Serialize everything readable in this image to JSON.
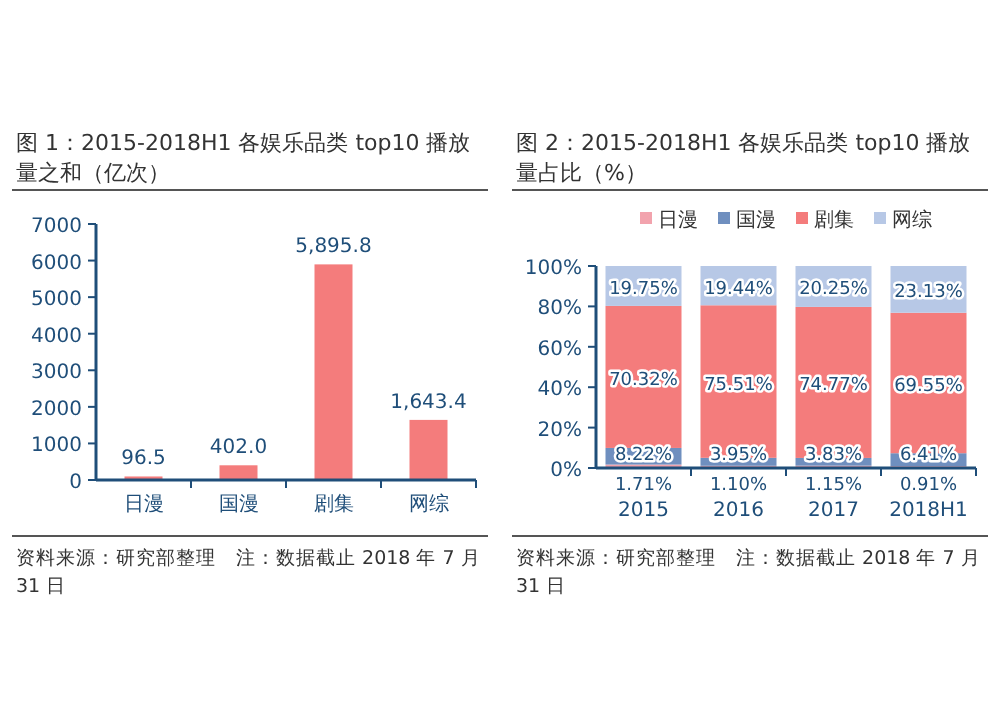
{
  "chart_data": [
    {
      "type": "bar",
      "title": "图 1：2015-2018H1 各娱乐品类 top10 播放量之和（亿次）",
      "categories": [
        "日漫",
        "国漫",
        "剧集",
        "网综"
      ],
      "values": [
        96.5,
        402.0,
        5895.8,
        1643.4
      ],
      "value_labels": [
        "96.5",
        "402.0",
        "5,895.8",
        "1,643.4"
      ],
      "color": "#f47c7c",
      "ylim": [
        0,
        7000
      ],
      "yticks": [
        0,
        1000,
        2000,
        3000,
        4000,
        5000,
        6000,
        7000
      ],
      "annotations": [
        "资料来源：研究部整理　注：数据截止 2018 年 7 月 31 日"
      ]
    },
    {
      "type": "bar",
      "stacked": true,
      "title": "图 2：2015-2018H1 各娱乐品类 top10 播放量占比（%）",
      "categories": [
        "2015",
        "2016",
        "2017",
        "2018H1"
      ],
      "legend": "top",
      "ylim": [
        0,
        100
      ],
      "yticks": [
        {
          "value": 0,
          "label": "0%"
        },
        {
          "value": 20,
          "label": "20%"
        },
        {
          "value": 40,
          "label": "40%"
        },
        {
          "value": 60,
          "label": "60%"
        },
        {
          "value": 80,
          "label": "80%"
        },
        {
          "value": 100,
          "label": "100%"
        }
      ],
      "series": [
        {
          "name": "日漫",
          "color": "#f2a3ad",
          "values": [
            1.71,
            1.1,
            1.15,
            0.91
          ],
          "value_labels": [
            "1.71%",
            "1.10%",
            "1.15%",
            "0.91%"
          ]
        },
        {
          "name": "国漫",
          "color": "#6f8fbf",
          "values": [
            8.22,
            3.95,
            3.83,
            6.41
          ],
          "value_labels": [
            "8.22%",
            "3.95%",
            "3.83%",
            "6.41%"
          ]
        },
        {
          "name": "剧集",
          "color": "#f47c7c",
          "values": [
            70.32,
            75.51,
            74.77,
            69.55
          ],
          "value_labels": [
            "70.32%",
            "75.51%",
            "74.77%",
            "69.55%"
          ]
        },
        {
          "name": "网综",
          "color": "#b7c8e6",
          "values": [
            19.75,
            19.44,
            20.25,
            23.13
          ],
          "value_labels": [
            "19.75%",
            "19.44%",
            "20.25%",
            "23.13%"
          ]
        }
      ],
      "annotations": [
        "资料来源：研究部整理　注：数据截止 2018 年 7 月 31 日"
      ]
    }
  ]
}
